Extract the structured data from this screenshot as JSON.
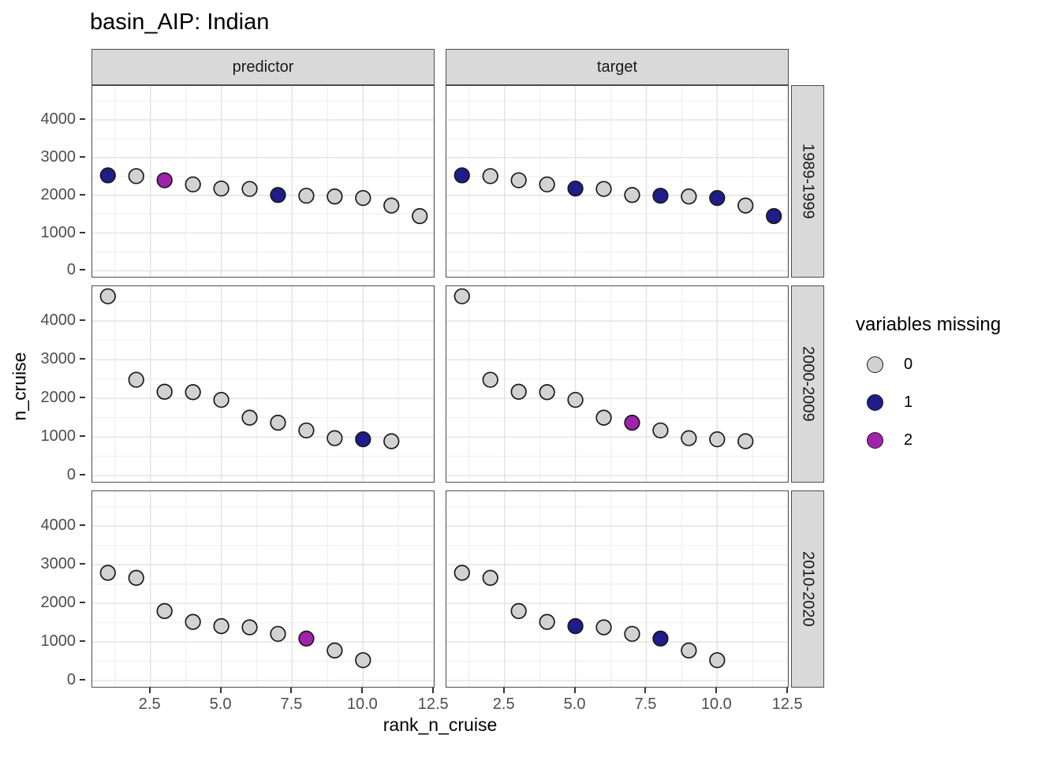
{
  "page": {
    "background": "#ffffff"
  },
  "style": {
    "strip_bg": "#d9d9d9",
    "strip_border": "#4d4d4d",
    "panel_border": "#4d4d4d",
    "grid_major": "#e2e2e2",
    "grid_minor": "#efefef",
    "axis_text": "#4d4d4d",
    "tick_color": "#333333",
    "point_outline": "#1a1a1a"
  },
  "chart_data": {
    "type": "scatter",
    "title": "basin_AIP: Indian",
    "xlabel": "rank_n_cruise",
    "ylabel": "n_cruise",
    "col_facets": [
      "predictor",
      "target"
    ],
    "row_facets": [
      "1989-1999",
      "2000-2009",
      "2010-2020"
    ],
    "x_ticks": [
      "2.5",
      "5.0",
      "7.5",
      "10.0",
      "12.5"
    ],
    "x_tick_values": [
      2.5,
      5.0,
      7.5,
      10.0,
      12.5
    ],
    "y_ticks": [
      "0",
      "1000",
      "2000",
      "3000",
      "4000"
    ],
    "y_tick_values": [
      0,
      1000,
      2000,
      3000,
      4000
    ],
    "x_domain": [
      0.45,
      12.55
    ],
    "y_domain": [
      -200,
      4900
    ],
    "x_minor": [
      1.25,
      3.75,
      6.25,
      8.75,
      11.25
    ],
    "y_minor": [
      500,
      1500,
      2500,
      3500,
      4500
    ],
    "grid": true,
    "legend": {
      "title": "variables missing",
      "position": "right",
      "entries": [
        {
          "label": "0",
          "color": "#d2d2d2"
        },
        {
          "label": "1",
          "color": "#1f1d89"
        },
        {
          "label": "2",
          "color": "#a122ad"
        }
      ]
    },
    "panels": [
      {
        "row": "1989-1999",
        "col": "predictor",
        "x": [
          1,
          2,
          3,
          4,
          5,
          6,
          7,
          8,
          9,
          10,
          11,
          12
        ],
        "y": [
          2530,
          2510,
          2400,
          2290,
          2180,
          2170,
          2010,
          1990,
          1970,
          1930,
          1730,
          1450
        ],
        "missing": [
          1,
          0,
          2,
          0,
          0,
          0,
          1,
          0,
          0,
          0,
          0,
          0
        ]
      },
      {
        "row": "1989-1999",
        "col": "target",
        "x": [
          1,
          2,
          3,
          4,
          5,
          6,
          7,
          8,
          9,
          10,
          11,
          12
        ],
        "y": [
          2530,
          2510,
          2400,
          2290,
          2180,
          2170,
          2010,
          1990,
          1970,
          1930,
          1730,
          1450
        ],
        "missing": [
          1,
          0,
          0,
          0,
          1,
          0,
          0,
          1,
          0,
          1,
          0,
          1
        ]
      },
      {
        "row": "2000-2009",
        "col": "predictor",
        "x": [
          1,
          2,
          3,
          4,
          5,
          6,
          7,
          8,
          9,
          10,
          11
        ],
        "y": [
          4640,
          2480,
          2170,
          2160,
          1960,
          1500,
          1370,
          1170,
          970,
          940,
          890
        ],
        "missing": [
          0,
          0,
          0,
          0,
          0,
          0,
          0,
          0,
          0,
          1,
          0
        ]
      },
      {
        "row": "2000-2009",
        "col": "target",
        "x": [
          1,
          2,
          3,
          4,
          5,
          6,
          7,
          8,
          9,
          10,
          11
        ],
        "y": [
          4640,
          2480,
          2170,
          2160,
          1960,
          1500,
          1370,
          1170,
          970,
          940,
          890
        ],
        "missing": [
          0,
          0,
          0,
          0,
          0,
          0,
          2,
          0,
          0,
          0,
          0
        ]
      },
      {
        "row": "2010-2020",
        "col": "predictor",
        "x": [
          1,
          2,
          3,
          4,
          5,
          6,
          7,
          8,
          9,
          10
        ],
        "y": [
          2790,
          2660,
          1800,
          1520,
          1410,
          1380,
          1210,
          1090,
          780,
          530
        ],
        "missing": [
          0,
          0,
          0,
          0,
          0,
          0,
          0,
          2,
          0,
          0
        ]
      },
      {
        "row": "2010-2020",
        "col": "target",
        "x": [
          1,
          2,
          3,
          4,
          5,
          6,
          7,
          8,
          9,
          10
        ],
        "y": [
          2790,
          2660,
          1800,
          1520,
          1410,
          1380,
          1210,
          1090,
          780,
          530
        ],
        "missing": [
          0,
          0,
          0,
          0,
          1,
          0,
          0,
          1,
          0,
          0
        ]
      }
    ]
  }
}
